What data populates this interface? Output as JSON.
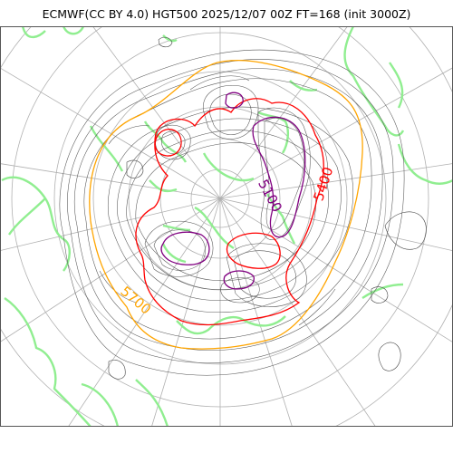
{
  "header": {
    "title": "ECMWF(CC BY 4.0) HGT500 2025/12/07 00Z FT=168 (init 3000Z)"
  },
  "map": {
    "projection": "north polar stereographic",
    "variable": "500 hPa geopotential height",
    "contour_interval_m": 60,
    "highlighted_contours": [
      {
        "value": 5100,
        "color": "#800080",
        "label": "5100"
      },
      {
        "value": 5400,
        "color": "#ff0000",
        "label": "5400"
      },
      {
        "value": 5700,
        "color": "#ffa500",
        "label": "5700"
      }
    ],
    "regular_contour_color": "#555555",
    "coastline_color": "#90ee90",
    "graticule_color": "#aaaaaa",
    "border_color": "#555555"
  }
}
